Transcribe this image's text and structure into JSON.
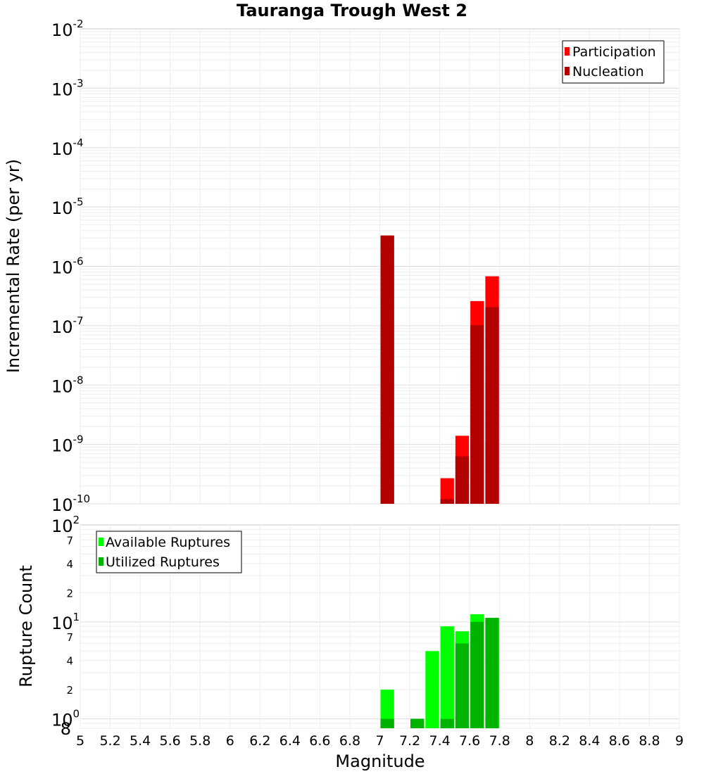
{
  "chart_data": [
    {
      "type": "bar",
      "id": "top",
      "title": "Tauranga Trough West 2",
      "xlabel": "",
      "ylabel": "Incremental Rate (per yr)",
      "yscale": "log",
      "xlim": [
        5,
        9
      ],
      "ylim_exp": [
        -10,
        -2
      ],
      "y_tick_exponents": [
        "-2",
        "-3",
        "-4",
        "-5",
        "-6",
        "-7",
        "-8",
        "-9",
        "-10"
      ],
      "y_tick_base": "10",
      "bin_width": 0.1,
      "legend_position": "top-right",
      "series": [
        {
          "name": "Participation",
          "color": "#ff0000",
          "points": [
            {
              "x": 7.05,
              "y": 3.3e-06
            },
            {
              "x": 7.45,
              "y": 2.7e-10
            },
            {
              "x": 7.55,
              "y": 1.4e-09
            },
            {
              "x": 7.65,
              "y": 2.6e-07
            },
            {
              "x": 7.75,
              "y": 6.8e-07
            }
          ]
        },
        {
          "name": "Nucleation",
          "color": "#b30000",
          "points": [
            {
              "x": 7.05,
              "y": 3.3e-06
            },
            {
              "x": 7.45,
              "y": 1.2e-10
            },
            {
              "x": 7.55,
              "y": 6.3e-10
            },
            {
              "x": 7.65,
              "y": 1.02e-07
            },
            {
              "x": 7.75,
              "y": 2.05e-07
            }
          ]
        }
      ]
    },
    {
      "type": "bar",
      "id": "bottom",
      "title": "",
      "xlabel": "Magnitude",
      "ylabel": "Rupture Count",
      "yscale": "log",
      "xlim": [
        5,
        9
      ],
      "ylim": [
        0.8,
        100
      ],
      "x_tick_labels": [
        "5",
        "5.2",
        "5.4",
        "5.6",
        "5.8",
        "6",
        "6.2",
        "6.4",
        "6.6",
        "6.8",
        "7",
        "7.2",
        "7.4",
        "7.6",
        "7.8",
        "8",
        "8.2",
        "8.4",
        "8.6",
        "8.8",
        "9"
      ],
      "y_major": [
        {
          "value": 100,
          "base": "10",
          "exp": "2"
        },
        {
          "value": 10,
          "base": "10",
          "exp": "1"
        },
        {
          "value": 1,
          "base": "10",
          "exp": "0"
        }
      ],
      "y_minor_labels": [
        {
          "value": 70,
          "label": "7"
        },
        {
          "value": 40,
          "label": "4"
        },
        {
          "value": 20,
          "label": "2"
        },
        {
          "value": 7,
          "label": "7"
        },
        {
          "value": 4,
          "label": "4"
        },
        {
          "value": 2,
          "label": "2"
        },
        {
          "value": 0.8,
          "label": "8"
        }
      ],
      "bin_width": 0.1,
      "legend_position": "top-left",
      "series": [
        {
          "name": "Available Ruptures",
          "color": "#00ff00",
          "points": [
            {
              "x": 7.05,
              "y": 2
            },
            {
              "x": 7.25,
              "y": 1
            },
            {
              "x": 7.35,
              "y": 5
            },
            {
              "x": 7.45,
              "y": 9
            },
            {
              "x": 7.55,
              "y": 8
            },
            {
              "x": 7.65,
              "y": 12
            },
            {
              "x": 7.75,
              "y": 11
            }
          ]
        },
        {
          "name": "Utilized Ruptures",
          "color": "#00b300",
          "points": [
            {
              "x": 7.05,
              "y": 1
            },
            {
              "x": 7.25,
              "y": 1
            },
            {
              "x": 7.45,
              "y": 1
            },
            {
              "x": 7.55,
              "y": 6
            },
            {
              "x": 7.65,
              "y": 10
            },
            {
              "x": 7.75,
              "y": 11
            }
          ]
        }
      ]
    }
  ]
}
